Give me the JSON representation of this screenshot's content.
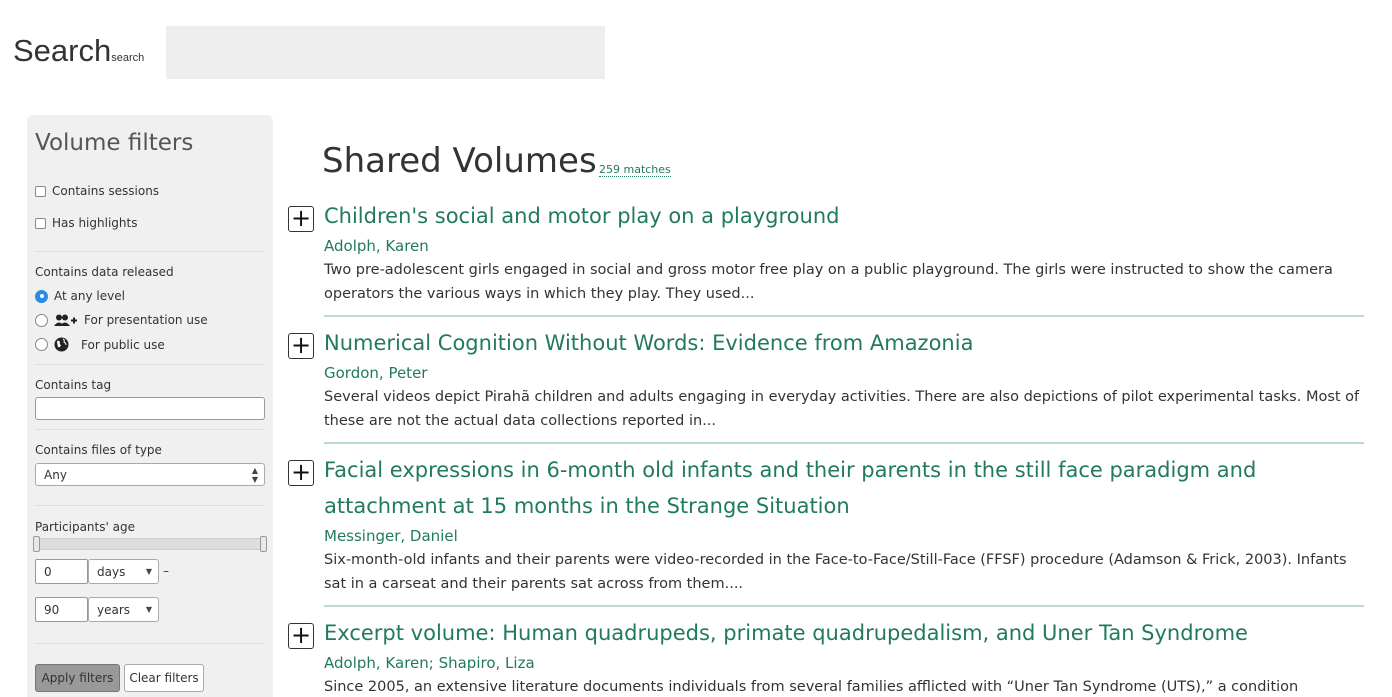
{
  "search": {
    "title": "Search",
    "subtitle": "search",
    "value": ""
  },
  "filters": {
    "title": "Volume filters",
    "contains_sessions": "Contains sessions",
    "has_highlights": "Has highlights",
    "released_label": "Contains data released",
    "release_options": [
      "At any level",
      "For presentation use",
      "For public use"
    ],
    "release_selected": "At any level",
    "tag_label": "Contains tag",
    "tag_value": "",
    "filetype_label": "Contains files of type",
    "filetype_value": "Any",
    "age_label": "Participants' age",
    "age_min": "0",
    "age_min_unit": "days",
    "age_max": "90",
    "age_max_unit": "years",
    "dash": "–",
    "apply_label": "Apply filters",
    "clear_label": "Clear filters"
  },
  "main": {
    "title": "Shared Volumes",
    "matches": "259 matches",
    "volumes": [
      {
        "title": "Children's social and motor play on a playground",
        "authors": "Adolph, Karen",
        "description": "Two pre-adolescent girls engaged in social and gross motor free play on a public playground. The girls were instructed to show the camera operators the various ways in which they play. They used..."
      },
      {
        "title": "Numerical Cognition Without Words: Evidence from Amazonia",
        "authors": "Gordon, Peter",
        "description": "Several videos depict Pirahã children and adults engaging in everyday activities. There are also depictions of pilot experimental tasks. Most of these are not the actual data collections reported in..."
      },
      {
        "title": "Facial expressions in 6-month old infants and their parents in the still face paradigm and attachment at 15 months in the Strange Situation",
        "authors": "Messinger, Daniel",
        "description": "Six-month-old infants and their parents were video-recorded in the Face-to-Face/Still-Face (FFSF) procedure (Adamson & Frick, 2003). Infants sat in a carseat and their parents sat across from them...."
      },
      {
        "title": "Excerpt volume: Human quadrupeds, primate quadrupedalism, and Uner Tan Syndrome",
        "authors": "Adolph, Karen; Shapiro, Liza",
        "description": "Since 2005, an extensive literature documents individuals from several families afflicted with “Uner Tan Syndrome (UTS),” a condition"
      }
    ],
    "expand_symbol": "+"
  },
  "icons": {
    "presentation": "users-plus-icon",
    "public": "globe-icon"
  },
  "colors": {
    "accent": "#217a5e",
    "separator": "#b9dccd",
    "sidebar_bg": "#f0f0f0"
  }
}
